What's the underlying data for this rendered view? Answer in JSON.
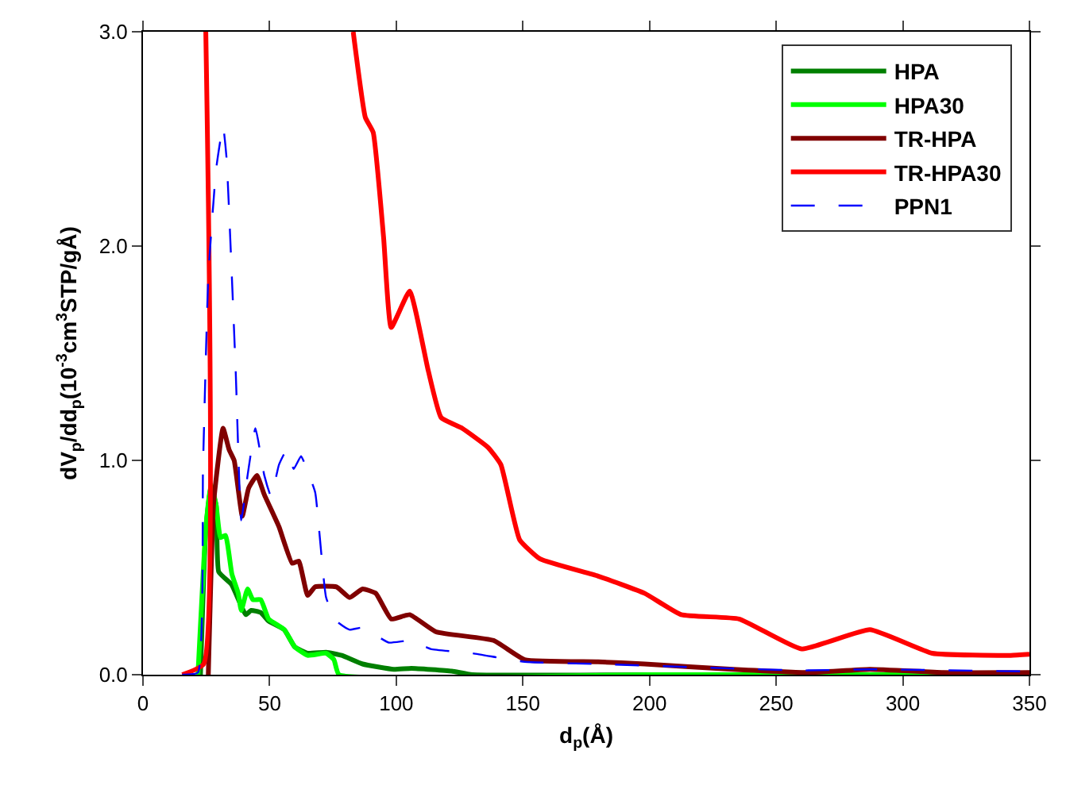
{
  "chart_data": {
    "type": "line",
    "xlabel": "d$_{p}$(Å)",
    "ylabel": "dV$_{p}$/dd$_{p}$(10$^{-3}$cm$^{3}$STP/gÅ)",
    "xlim": [
      0,
      350
    ],
    "xticks": [
      0,
      50,
      100,
      150,
      200,
      250,
      300,
      350
    ],
    "ylim": [
      0,
      3.0
    ],
    "yticks": [
      {
        "value": 0,
        "label": "0.0"
      },
      {
        "value": 1,
        "label": "1.0"
      },
      {
        "value": 2,
        "label": "2.0"
      },
      {
        "value": 3,
        "label": "3.0"
      }
    ],
    "legend": "top right",
    "marker": "none",
    "series": [
      {
        "name": "HPA",
        "color": "#007f00",
        "line_style": "solid",
        "x": [
          22.7,
          24.8,
          26.8,
          28.9,
          29.9,
          35,
          40.6,
          42.7,
          46.5,
          49.6,
          55.8,
          59.9,
          65,
          72.3,
          78.5,
          86.7,
          99,
          106,
          121.9,
          130,
          200,
          350
        ],
        "values": [
          0,
          0.68,
          0.87,
          0.79,
          0.48,
          0.42,
          0.28,
          0.3,
          0.29,
          0.25,
          0.21,
          0.13,
          0.1,
          0.105,
          0.09,
          0.05,
          0.025,
          0.03,
          0.017,
          0,
          0,
          0
        ]
      },
      {
        "name": "HPA30",
        "color": "#00ff00",
        "line_style": "solid",
        "x": [
          21.7,
          24.8,
          26.8,
          28.9,
          30.6,
          32.6,
          35.1,
          37.6,
          38.8,
          41.3,
          43.4,
          46.5,
          49.6,
          55.8,
          59.9,
          65,
          72.3,
          75.4,
          77.4,
          200,
          350
        ],
        "values": [
          0,
          0.68,
          0.89,
          0.79,
          0.64,
          0.65,
          0.47,
          0.38,
          0.3,
          0.4,
          0.35,
          0.35,
          0.26,
          0.21,
          0.13,
          0.09,
          0.1,
          0.07,
          0,
          0,
          0
        ]
      },
      {
        "name": "TR-HPA",
        "color": "#800000",
        "line_style": "solid",
        "x": [
          25.8,
          27.9,
          31.6,
          34,
          36,
          39.2,
          41.7,
          45,
          47.9,
          53.7,
          58.9,
          61.5,
          65,
          68,
          76.4,
          81.6,
          86.7,
          91.9,
          98,
          105.3,
          115.7,
          138.4,
          150.7,
          179.7,
          198,
          233,
          263,
          287,
          316,
          350
        ],
        "values": [
          0,
          0.8,
          1.15,
          1.05,
          1.0,
          0.74,
          0.87,
          0.93,
          0.84,
          0.69,
          0.52,
          0.53,
          0.37,
          0.41,
          0.41,
          0.36,
          0.4,
          0.38,
          0.26,
          0.28,
          0.2,
          0.16,
          0.07,
          0.06,
          0.05,
          0.025,
          0.01,
          0.025,
          0.01,
          0.01
        ]
      },
      {
        "name": "TR-HPA30",
        "color": "#ff0000",
        "line_style": "solid",
        "x": [
          15.5,
          24,
          24.8,
          50,
          83,
          87.8,
          90.9,
          95,
          98,
          105.3,
          112.6,
          117.7,
          126,
          136.3,
          141.3,
          148.7,
          156.8,
          179.7,
          198,
          212.5,
          235.4,
          260,
          287,
          311.6,
          342.6,
          350
        ],
        "values": [
          0,
          0.05,
          3.0,
          null,
          3.0,
          2.6,
          2.53,
          2.04,
          1.62,
          1.79,
          1.42,
          1.2,
          1.15,
          1.06,
          0.98,
          0.63,
          0.54,
          0.46,
          0.38,
          0.28,
          0.26,
          0.12,
          0.21,
          0.1,
          0.09,
          0.095
        ]
      },
      {
        "name": "PPN1",
        "color": "#0000ff",
        "line_style": "dashed",
        "x": [
          15.5,
          21.7,
          23.7,
          25.8,
          28.9,
          31.6,
          33,
          36.6,
          38.8,
          41.3,
          44.4,
          47.9,
          50.6,
          53.7,
          56.8,
          59.5,
          62.4,
          65,
          68,
          72.3,
          76.4,
          81.6,
          86.7,
          97,
          105.9,
          113.6,
          130,
          150.7,
          179.7,
          230,
          260,
          287,
          350
        ],
        "values": [
          0,
          0.01,
          0.97,
          1.86,
          2.36,
          2.56,
          2.41,
          1.42,
          0.72,
          0.93,
          1.15,
          0.93,
          0.83,
          0.98,
          1.05,
          0.96,
          1.02,
          0.95,
          0.85,
          0.36,
          0.25,
          0.21,
          0.22,
          0.15,
          0.16,
          0.12,
          0.1,
          0.06,
          0.05,
          0.03,
          0.02,
          0.025,
          0.015
        ]
      }
    ]
  }
}
